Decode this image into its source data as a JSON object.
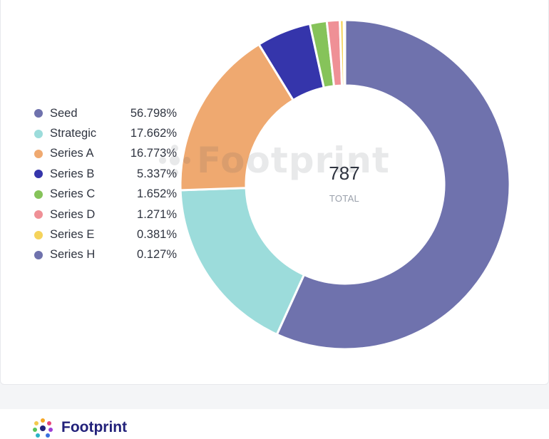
{
  "chart_data": {
    "type": "pie",
    "variant": "donut",
    "center_value": "787",
    "center_label": "TOTAL",
    "legend_position": "left",
    "slices": [
      {
        "name": "Seed",
        "label": "56.798%",
        "value": 56.798,
        "color": "#6f72ad"
      },
      {
        "name": "Strategic",
        "label": "17.662%",
        "value": 17.662,
        "color": "#9cdcdb"
      },
      {
        "name": "Series A",
        "label": "16.773%",
        "value": 16.773,
        "color": "#efa970"
      },
      {
        "name": "Series B",
        "label": "5.337%",
        "value": 5.337,
        "color": "#3535ab"
      },
      {
        "name": "Series C",
        "label": "1.652%",
        "value": 1.652,
        "color": "#86c35a"
      },
      {
        "name": "Series D",
        "label": "1.271%",
        "value": 1.271,
        "color": "#ef9096"
      },
      {
        "name": "Series E",
        "label": "0.381%",
        "value": 0.381,
        "color": "#f5d35b"
      },
      {
        "name": "Series H",
        "label": "0.127%",
        "value": 0.127,
        "color": "#6f72ad"
      }
    ]
  },
  "watermark": {
    "text": "Footprint",
    "icon": "footprint-logo-icon"
  },
  "footer": {
    "brand_name": "Footprint",
    "icon": "footprint-logo-icon"
  }
}
